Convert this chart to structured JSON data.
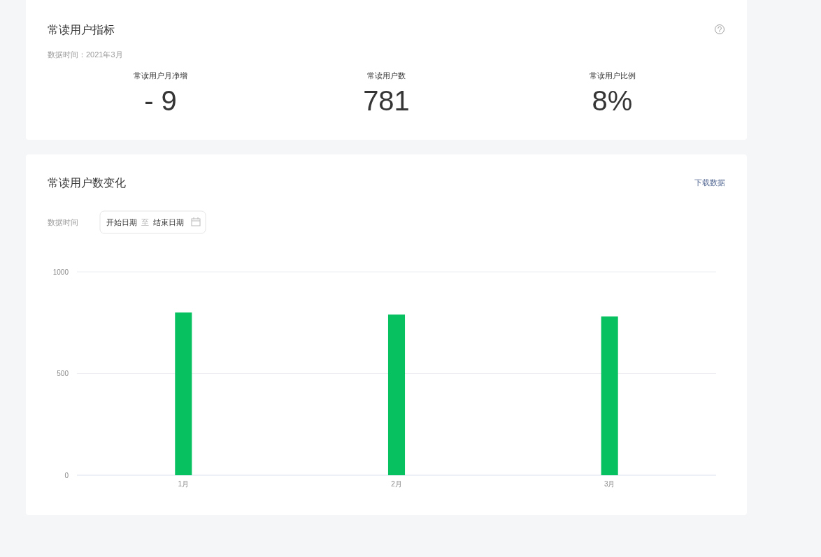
{
  "chart_data": [
    {
      "type": "other",
      "title": "常读用户指标",
      "subtitle": "数据时间：2021年3月",
      "annotations": [
        "常读用户月净增",
        "- 9",
        "常读用户数",
        "781",
        "常读用户比例",
        "8%"
      ]
    },
    {
      "type": "bar",
      "title": "常读用户数变化",
      "annotations": [
        "下载数据",
        "数据时间",
        "开始日期",
        "至",
        "结束日期"
      ],
      "categories": [
        "1月",
        "2月",
        "3月"
      ],
      "values": [
        800,
        790,
        781
      ],
      "color": "#07c160",
      "ylim": [
        0,
        1000
      ],
      "yticks": [
        0,
        500,
        1000
      ],
      "grid": "y"
    }
  ]
}
